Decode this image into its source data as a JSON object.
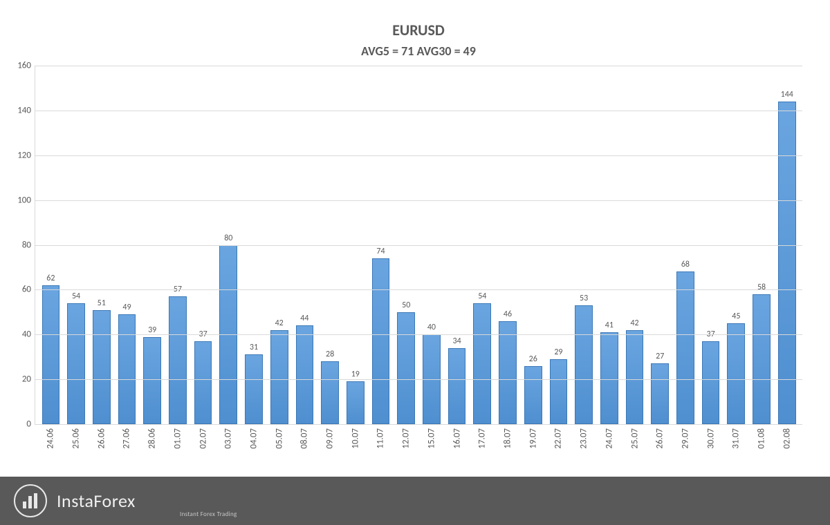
{
  "chart": {
    "type": "bar",
    "title": "EURUSD",
    "subtitle": "AVG5 = 71 AVG30 = 49",
    "title_fontsize": 22,
    "subtitle_fontsize": 18,
    "title_color": "#595959",
    "categories": [
      "24.06",
      "25.06",
      "26.06",
      "27.06",
      "28.06",
      "01.07",
      "02.07",
      "03.07",
      "04.07",
      "05.07",
      "08.07",
      "09.07",
      "10.07",
      "11.07",
      "12.07",
      "15.07",
      "16.07",
      "17.07",
      "18.07",
      "19.07",
      "22.07",
      "23.07",
      "24.07",
      "25.07",
      "26.07",
      "29.07",
      "30.07",
      "31.07",
      "01.08",
      "02.08"
    ],
    "values": [
      62,
      54,
      51,
      49,
      39,
      57,
      37,
      80,
      31,
      42,
      44,
      28,
      19,
      74,
      50,
      40,
      34,
      54,
      46,
      26,
      29,
      53,
      41,
      42,
      27,
      68,
      37,
      45,
      58,
      144
    ],
    "bar_fill_top": "#6aa5e0",
    "bar_fill_bottom": "#4f8fd0",
    "bar_border": "#3a77b6",
    "bar_width": 0.7,
    "data_label_fontsize": 12,
    "data_label_color": "#595959",
    "ylim": [
      0,
      160
    ],
    "ytick_step": 20,
    "ytick_labels": [
      "0",
      "20",
      "40",
      "60",
      "80",
      "100",
      "120",
      "140",
      "160"
    ],
    "axis_label_fontsize": 13,
    "axis_label_color": "#595959",
    "grid_color": "#d9d9d9",
    "background_color": "#ffffff",
    "xtick_rotation": -90
  },
  "watermark": {
    "brand": "InstaForex",
    "tagline": "Instant Forex Trading",
    "background": "rgba(0,0,0,0.65)",
    "text_color": "#f0f0f0",
    "tagline_color": "#c8c8c8",
    "brand_fontsize": 26,
    "tagline_fontsize": 9
  }
}
